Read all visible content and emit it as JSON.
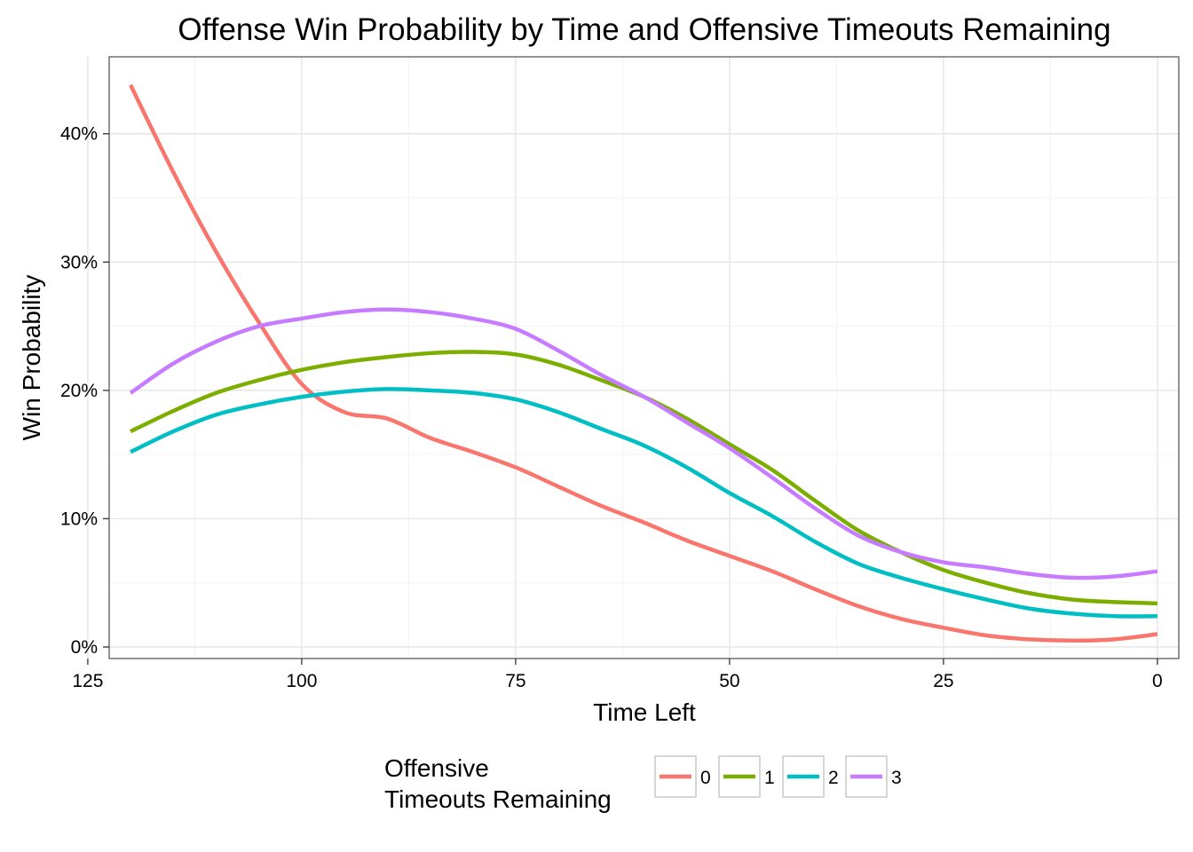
{
  "chart_data": {
    "type": "line",
    "title": "Offense Win Probability by Time and Offensive Timeouts Remaining",
    "xlabel": "Time Left",
    "ylabel": "Win Probability",
    "x_reversed": true,
    "xlim": [
      122.5,
      -2.5
    ],
    "ylim": [
      -0.009,
      0.46
    ],
    "x_ticks": [
      125,
      100,
      75,
      50,
      25,
      0
    ],
    "x_tick_labels": [
      "125",
      "100",
      "75",
      "50",
      "25",
      "0"
    ],
    "y_ticks": [
      0,
      0.1,
      0.2,
      0.3,
      0.4
    ],
    "y_tick_labels": [
      "0%",
      "10%",
      "20%",
      "30%",
      "40%"
    ],
    "grid": true,
    "legend": {
      "title_lines": [
        "Offensive",
        "Timeouts Remaining"
      ],
      "position": "bottom"
    },
    "series": [
      {
        "name": "0",
        "color": "#F8766D",
        "x": [
          120,
          115,
          110,
          105,
          100,
          95,
          90,
          85,
          80,
          75,
          70,
          65,
          60,
          55,
          50,
          45,
          40,
          35,
          30,
          25,
          20,
          15,
          10,
          5,
          0
        ],
        "y": [
          0.438,
          0.37,
          0.308,
          0.253,
          0.205,
          0.183,
          0.178,
          0.163,
          0.152,
          0.14,
          0.125,
          0.11,
          0.097,
          0.083,
          0.071,
          0.059,
          0.045,
          0.032,
          0.022,
          0.015,
          0.009,
          0.006,
          0.005,
          0.006,
          0.01
        ]
      },
      {
        "name": "1",
        "color": "#7CAE00",
        "x": [
          120,
          115,
          110,
          105,
          100,
          95,
          90,
          85,
          80,
          75,
          70,
          65,
          60,
          55,
          50,
          45,
          40,
          35,
          30,
          25,
          20,
          15,
          10,
          5,
          0
        ],
        "y": [
          0.168,
          0.184,
          0.198,
          0.208,
          0.216,
          0.222,
          0.226,
          0.229,
          0.23,
          0.228,
          0.22,
          0.208,
          0.195,
          0.178,
          0.158,
          0.138,
          0.114,
          0.091,
          0.074,
          0.06,
          0.05,
          0.042,
          0.037,
          0.035,
          0.034
        ]
      },
      {
        "name": "2",
        "color": "#00BFC4",
        "x": [
          120,
          115,
          110,
          105,
          100,
          95,
          90,
          85,
          80,
          75,
          70,
          65,
          60,
          55,
          50,
          45,
          40,
          35,
          30,
          25,
          20,
          15,
          10,
          5,
          0
        ],
        "y": [
          0.152,
          0.168,
          0.181,
          0.189,
          0.195,
          0.199,
          0.201,
          0.2,
          0.198,
          0.193,
          0.183,
          0.17,
          0.157,
          0.14,
          0.12,
          0.102,
          0.082,
          0.065,
          0.054,
          0.045,
          0.037,
          0.03,
          0.026,
          0.024,
          0.024
        ]
      },
      {
        "name": "3",
        "color": "#C77CFF",
        "x": [
          120,
          115,
          110,
          105,
          100,
          95,
          90,
          85,
          80,
          75,
          70,
          65,
          60,
          55,
          50,
          45,
          40,
          35,
          30,
          25,
          20,
          15,
          10,
          5,
          0
        ],
        "y": [
          0.198,
          0.221,
          0.238,
          0.25,
          0.256,
          0.261,
          0.263,
          0.261,
          0.256,
          0.248,
          0.231,
          0.212,
          0.195,
          0.175,
          0.155,
          0.132,
          0.108,
          0.087,
          0.074,
          0.066,
          0.062,
          0.057,
          0.054,
          0.055,
          0.059
        ]
      }
    ]
  }
}
